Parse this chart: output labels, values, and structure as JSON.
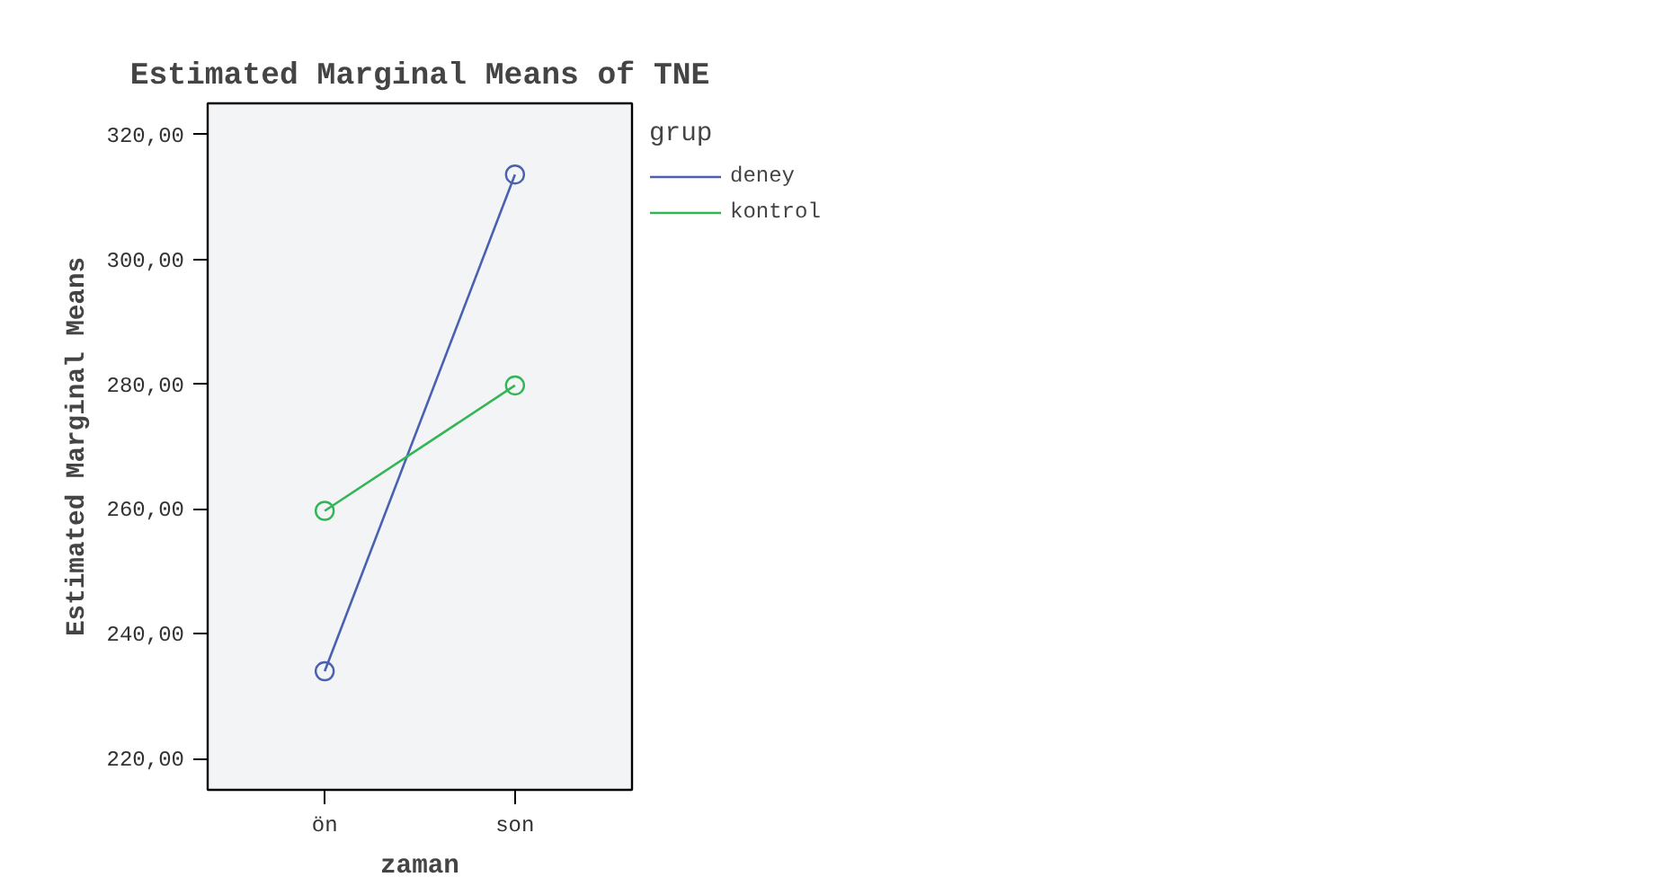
{
  "chart_data": {
    "type": "line",
    "title": "Estimated Marginal Means of TNE",
    "xlabel": "zaman",
    "ylabel": "Estimated Marginal Means",
    "legend_title": "grup",
    "categories": [
      "ön",
      "son"
    ],
    "series": [
      {
        "name": "deney",
        "color": "#4a61b0",
        "values": [
          234.0,
          313.6
        ]
      },
      {
        "name": "kontrol",
        "color": "#33b556",
        "values": [
          259.7,
          279.8
        ]
      }
    ],
    "ylim": [
      215,
      325
    ],
    "yticks": [
      {
        "value": 220,
        "label": "220,00"
      },
      {
        "value": 240,
        "label": "240,00"
      },
      {
        "value": 260,
        "label": "260,00"
      },
      {
        "value": 280,
        "label": "280,00"
      },
      {
        "value": 300,
        "label": "300,00"
      },
      {
        "value": 320,
        "label": "320,00"
      }
    ],
    "grid": false,
    "legend": "top right",
    "marker": "circle",
    "line_style": "solid"
  }
}
